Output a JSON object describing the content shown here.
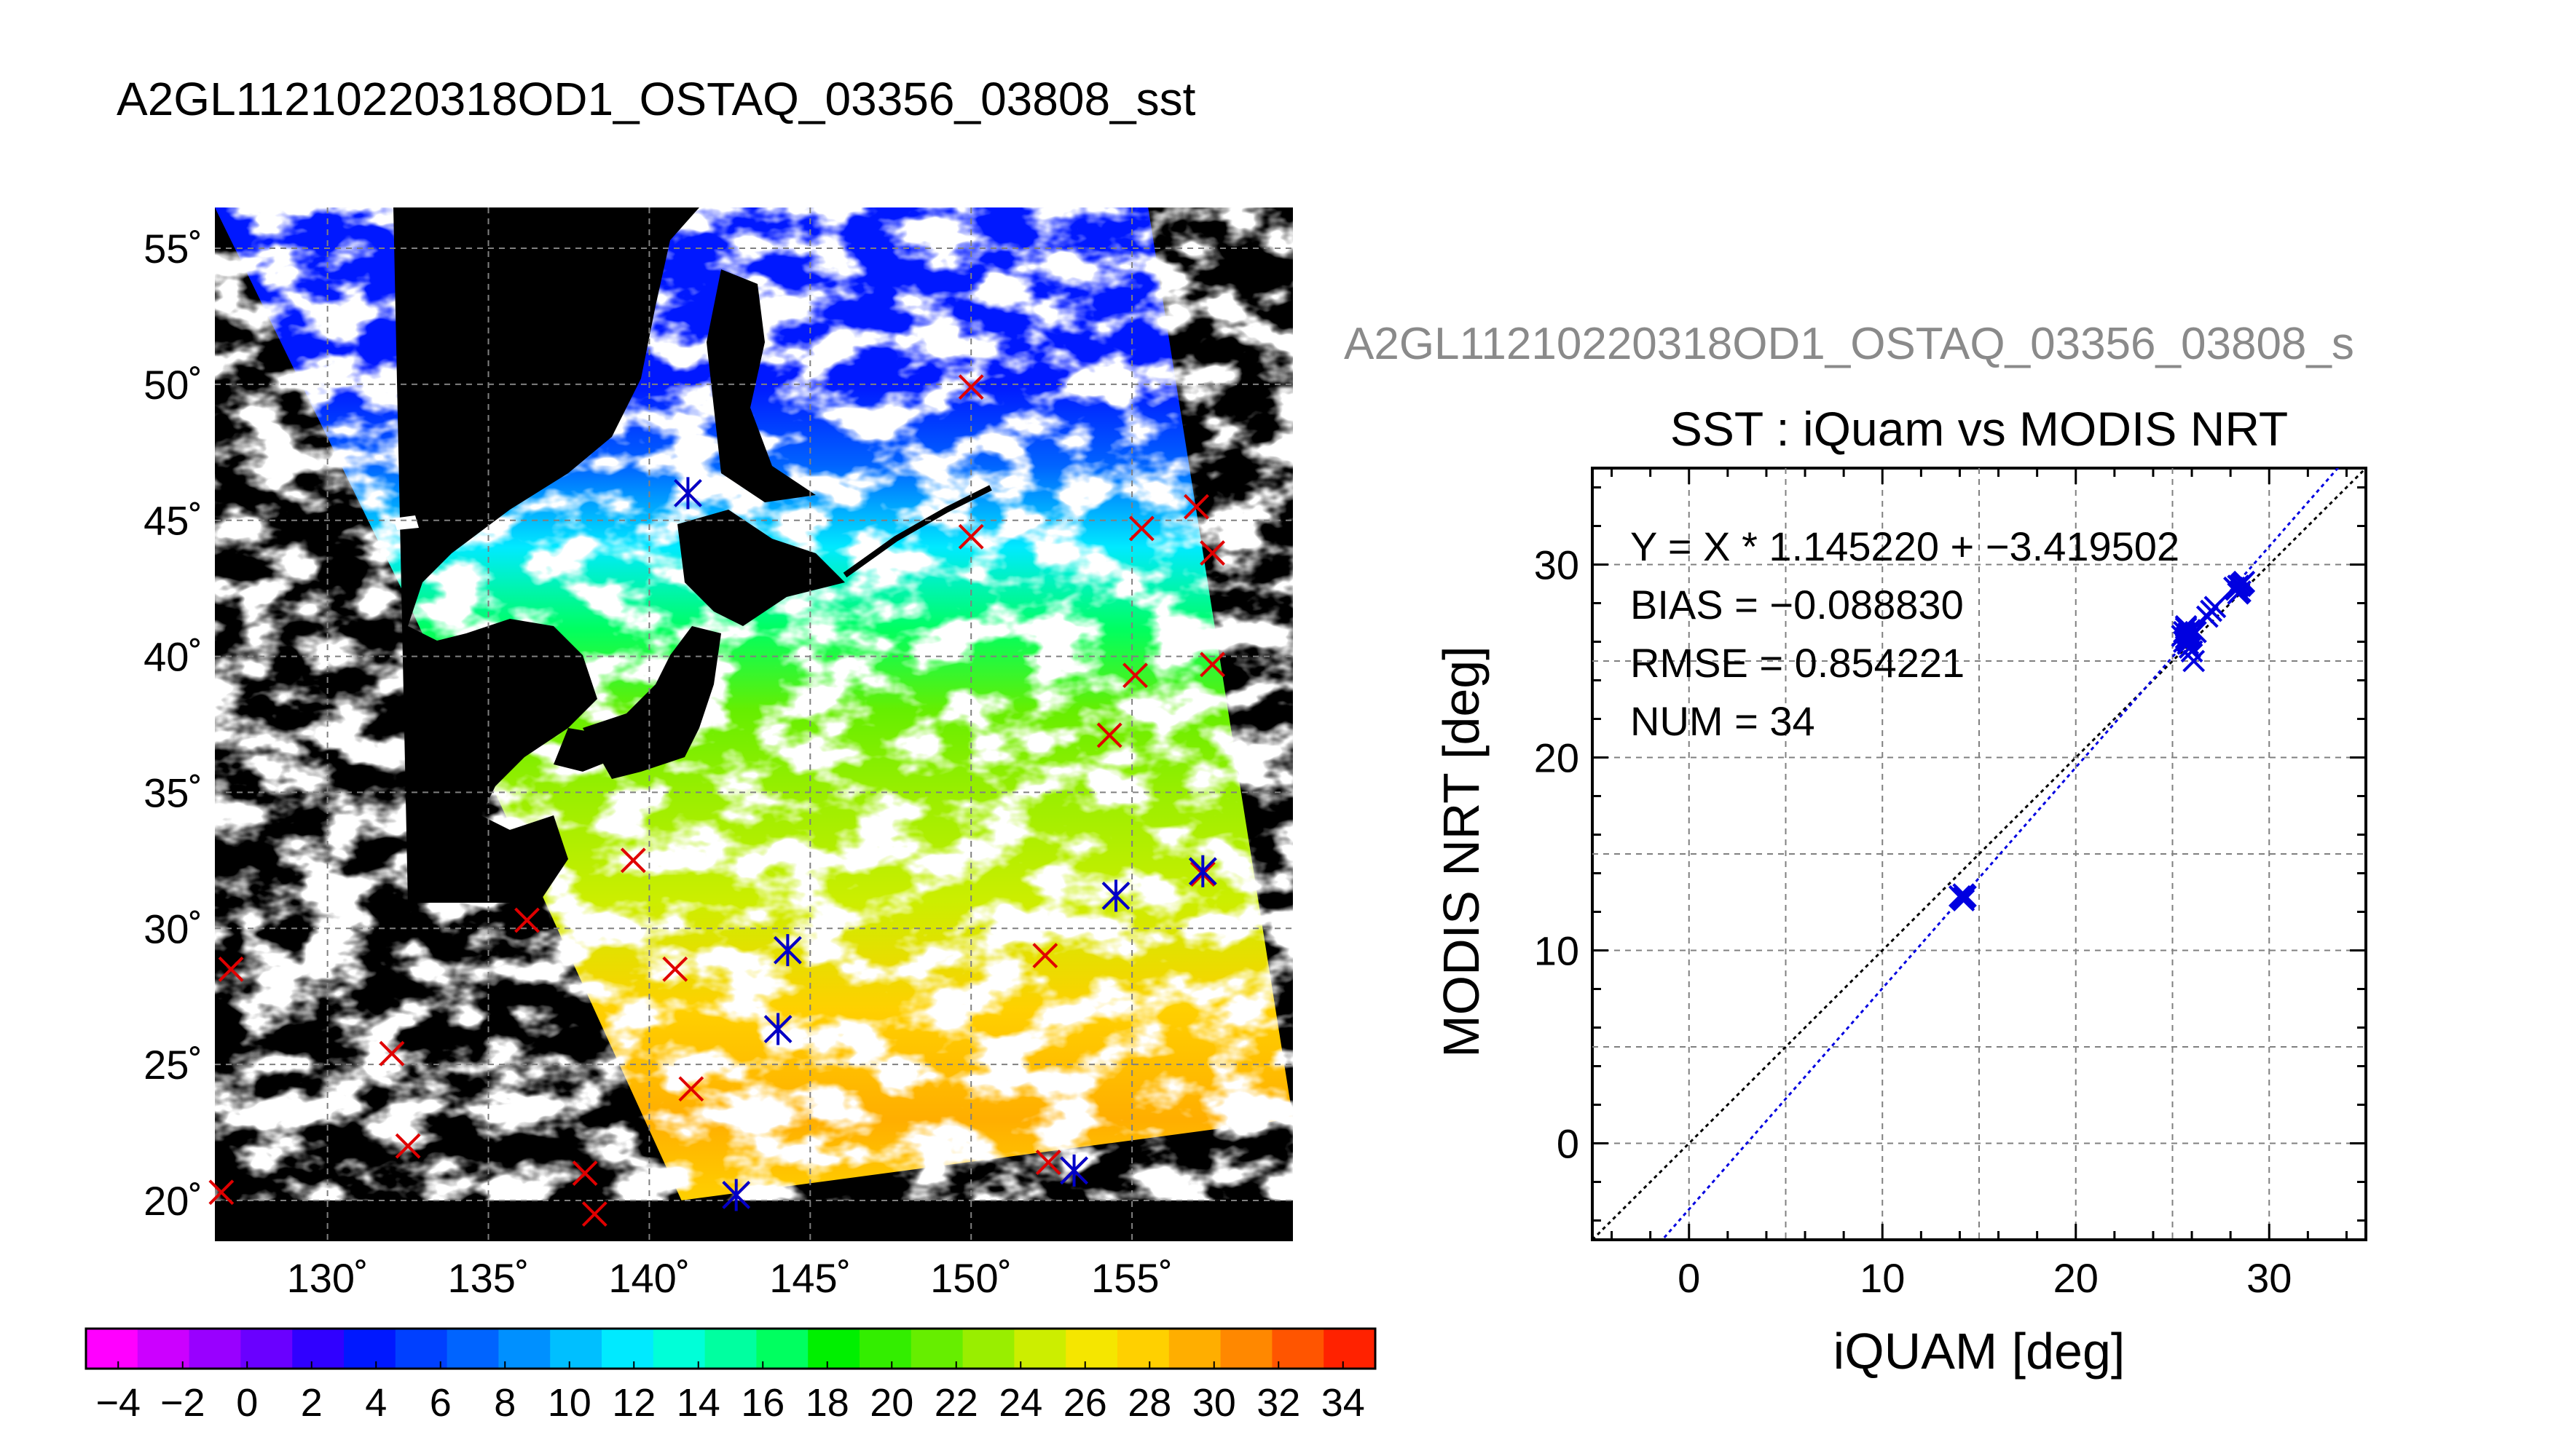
{
  "page_title": "A2GL11210220318OD1_OSTAQ_03356_03808_sst",
  "chart_data": [
    {
      "type": "heatmap",
      "title": "",
      "xlabel": "",
      "ylabel": "",
      "xlim": [
        126.5,
        160
      ],
      "ylim": [
        18.5,
        56.5
      ],
      "x_ticks": [
        {
          "value": 130,
          "label": "130˚"
        },
        {
          "value": 135,
          "label": "135˚"
        },
        {
          "value": 140,
          "label": "140˚"
        },
        {
          "value": 145,
          "label": "145˚"
        },
        {
          "value": 150,
          "label": "150˚"
        },
        {
          "value": 155,
          "label": "155˚"
        }
      ],
      "y_ticks": [
        {
          "value": 20,
          "label": "20˚"
        },
        {
          "value": 25,
          "label": "25˚"
        },
        {
          "value": 30,
          "label": "30˚"
        },
        {
          "value": 35,
          "label": "35˚"
        },
        {
          "value": 40,
          "label": "40˚"
        },
        {
          "value": 45,
          "label": "45˚"
        },
        {
          "value": 50,
          "label": "50˚"
        },
        {
          "value": 55,
          "label": "55˚"
        }
      ],
      "grid": true,
      "swath_corners": [
        [
          126.5,
          56.5
        ],
        [
          155.5,
          56.5
        ],
        [
          160,
          23
        ],
        [
          141,
          20
        ],
        [
          132.5,
          42
        ]
      ],
      "sst_field_bands": [
        {
          "lat": 20,
          "sst": 28.5
        },
        {
          "lat": 23,
          "sst": 30
        },
        {
          "lat": 27,
          "sst": 27
        },
        {
          "lat": 31,
          "sst": 25
        },
        {
          "lat": 35,
          "sst": 23
        },
        {
          "lat": 38,
          "sst": 21
        },
        {
          "lat": 41,
          "sst": 17
        },
        {
          "lat": 44,
          "sst": 12
        },
        {
          "lat": 47,
          "sst": 7
        },
        {
          "lat": 50,
          "sst": 4
        }
      ],
      "buoys_red_x": [
        [
          127,
          28.5
        ],
        [
          126.7,
          20.3
        ],
        [
          132,
          25.4
        ],
        [
          132.5,
          22
        ],
        [
          136.2,
          30.3
        ],
        [
          138,
          21
        ],
        [
          138.3,
          19.5
        ],
        [
          139.5,
          32.5
        ],
        [
          140.8,
          28.5
        ],
        [
          141.3,
          24.1
        ],
        [
          142.7,
          20.2
        ],
        [
          144.3,
          29.2
        ],
        [
          144,
          26.3
        ],
        [
          141.2,
          46
        ],
        [
          150,
          49.9
        ],
        [
          150,
          44.4
        ],
        [
          152.3,
          29
        ],
        [
          152.4,
          21.4
        ],
        [
          153.2,
          21.1
        ],
        [
          154.3,
          37.1
        ],
        [
          154.5,
          31.2
        ],
        [
          155.1,
          39.3
        ],
        [
          155.3,
          44.7
        ],
        [
          157,
          45.5
        ],
        [
          157.5,
          43.8
        ],
        [
          157.5,
          39.7
        ],
        [
          157.2,
          32
        ]
      ],
      "buoys_blue_star": [
        [
          141.2,
          46
        ],
        [
          142.7,
          20.2
        ],
        [
          144.3,
          29.2
        ],
        [
          144,
          26.3
        ],
        [
          153.2,
          21.1
        ],
        [
          154.5,
          31.2
        ],
        [
          157.2,
          32.1
        ]
      ],
      "colorbar": {
        "min": -5,
        "max": 35,
        "tick_labels": [
          "−4",
          "−2",
          "0",
          "2",
          "4",
          "6",
          "8",
          "10",
          "12",
          "14",
          "16",
          "18",
          "20",
          "22",
          "24",
          "26",
          "28",
          "30",
          "32",
          "34"
        ],
        "tick_values": [
          -4,
          -2,
          0,
          2,
          4,
          6,
          8,
          10,
          12,
          14,
          16,
          18,
          20,
          22,
          24,
          26,
          28,
          30,
          32,
          34
        ],
        "colors": [
          "#ff00ff",
          "#cc00ff",
          "#9900ff",
          "#6a00ff",
          "#3000ff",
          "#0018ff",
          "#0040ff",
          "#0064ff",
          "#0090ff",
          "#00bfff",
          "#00eaff",
          "#00ffd8",
          "#00ffa0",
          "#00ff60",
          "#00f000",
          "#33ee00",
          "#66ee00",
          "#99ee00",
          "#ccee00",
          "#f5e600",
          "#ffd000",
          "#ffae00",
          "#ff8800",
          "#ff5500",
          "#ff2200"
        ]
      }
    },
    {
      "type": "scatter",
      "subtitle": "A2GL11210220318OD1_OSTAQ_03356_03808_s",
      "title": "SST : iQuam vs MODIS NRT",
      "xlabel": "iQUAM [deg]",
      "ylabel": "MODIS NRT [deg]",
      "xlim": [
        -5,
        35
      ],
      "ylim": [
        -5,
        35
      ],
      "x_ticks": [
        0,
        10,
        20,
        30
      ],
      "y_ticks": [
        0,
        10,
        20,
        30
      ],
      "grid": true,
      "stats": [
        "Y = X * 1.145220 + −3.419502",
        "BIAS = −0.088830",
        "RMSE = 0.854221",
        "NUM = 34"
      ],
      "regression": {
        "slope": 1.14522,
        "intercept": -3.419502
      },
      "series": [
        {
          "marker": "x",
          "x": [
            14.1,
            14.2,
            14.3,
            14.2,
            14.0,
            25.6,
            25.7,
            25.8,
            25.9,
            25.6,
            25.8,
            26.0,
            25.7,
            25.9,
            25.8,
            26.1,
            27.0,
            26.8,
            27.2,
            28.3,
            28.5,
            28.6,
            28.4,
            28.2,
            28.7,
            28.5,
            25.9,
            26.2,
            25.5,
            25.7,
            26.0,
            28.4,
            14.2,
            25.8
          ],
          "y": [
            12.7,
            12.9,
            12.8,
            12.6,
            12.8,
            26.5,
            26.2,
            26.4,
            26.6,
            26.0,
            25.9,
            26.3,
            26.7,
            25.7,
            26.1,
            25.0,
            27.6,
            27.3,
            27.8,
            28.7,
            28.9,
            29.0,
            28.5,
            28.8,
            29.1,
            28.6,
            26.2,
            26.5,
            26.3,
            26.8,
            25.5,
            28.9,
            12.7,
            26.4
          ]
        }
      ]
    }
  ]
}
